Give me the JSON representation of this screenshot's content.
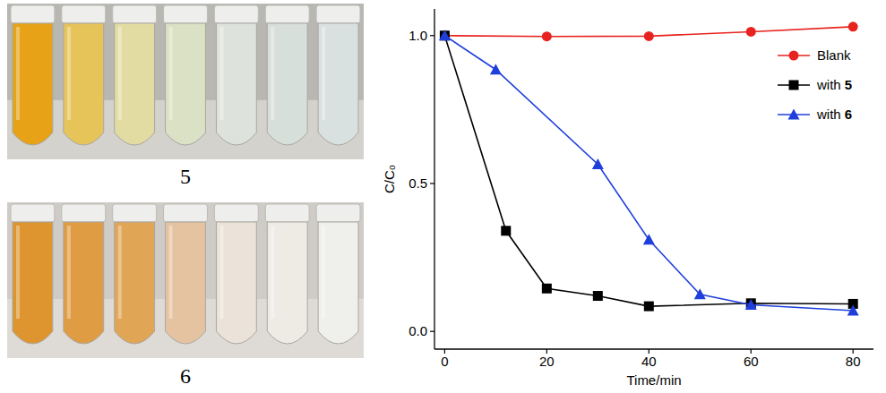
{
  "chart_data": {
    "type": "line",
    "x_label": "Time/min",
    "y_label": "C/C₀",
    "xlim": [
      -2,
      84
    ],
    "xticks": [
      0,
      20,
      40,
      60,
      80
    ],
    "ylim": [
      -0.06,
      1.09
    ],
    "yticks": [
      {
        "value": 0,
        "label": "0.0"
      },
      {
        "value": 0.5,
        "label": "0.5"
      },
      {
        "value": 1,
        "label": "1.0"
      }
    ],
    "legend": "upper right",
    "grid": false,
    "series": [
      {
        "name": "Blank",
        "color": "#e8221e",
        "marker": "circle",
        "line_style": "solid",
        "x": [
          0,
          20,
          40,
          60,
          80
        ],
        "values": [
          1.0,
          0.997,
          0.998,
          1.013,
          1.03
        ]
      },
      {
        "name": "with 5",
        "color": "#000000",
        "marker": "square",
        "line_style": "solid",
        "x": [
          0,
          12,
          20,
          30,
          40,
          60,
          80
        ],
        "values": [
          1.0,
          0.34,
          0.145,
          0.12,
          0.085,
          0.095,
          0.093
        ]
      },
      {
        "name": "with 6",
        "color": "#1f3fdc",
        "marker": "triangle",
        "line_style": "solid",
        "x": [
          0,
          10,
          30,
          40,
          50,
          60,
          80
        ],
        "values": [
          1.0,
          0.885,
          0.565,
          0.31,
          0.125,
          0.09,
          0.07
        ]
      }
    ]
  },
  "photos": [
    {
      "label": "5"
    },
    {
      "label": "6"
    }
  ]
}
